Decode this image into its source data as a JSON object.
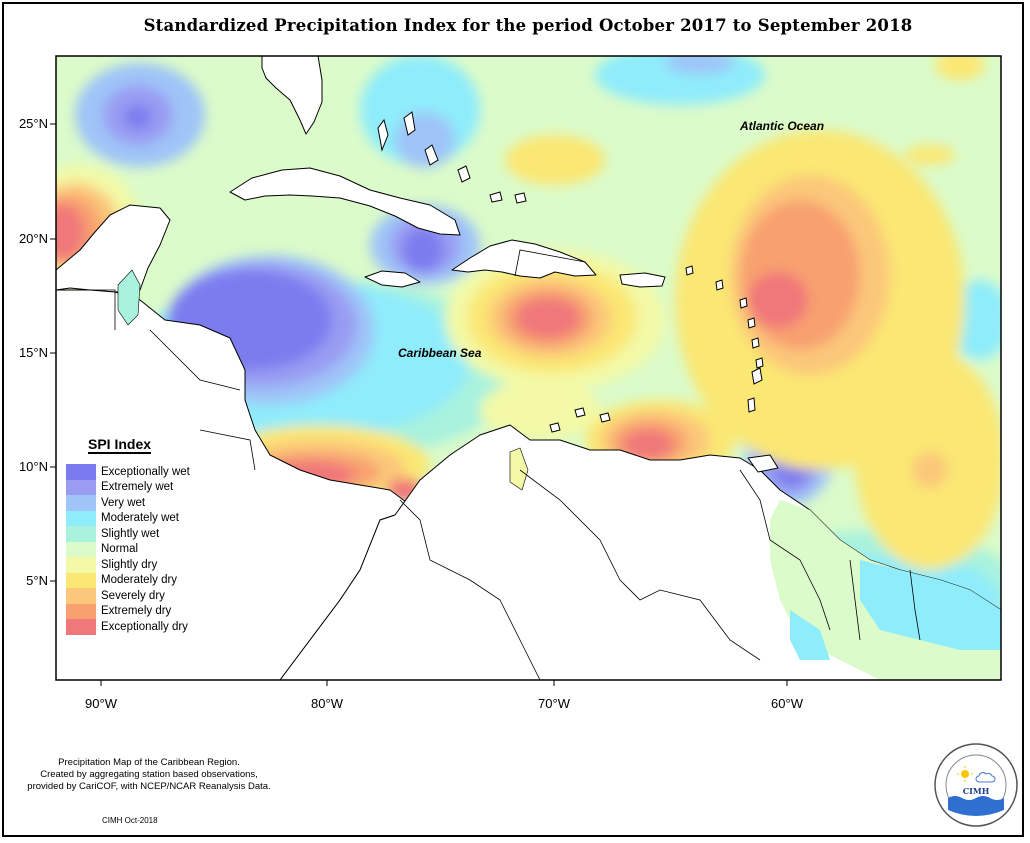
{
  "title": "Standardized Precipitation Index for the period October 2017 to September 2018",
  "axes": {
    "lat_labels": [
      "25°N",
      "20°N",
      "15°N",
      "10°N",
      "5°N"
    ],
    "lon_labels": [
      "90°W",
      "80°W",
      "70°W",
      "60°W"
    ]
  },
  "places": {
    "atlantic": "Atlantic Ocean",
    "caribbean": "Caribbean Sea"
  },
  "legend": {
    "title": "SPI Index",
    "items": [
      {
        "label": "Exceptionally wet",
        "color": "#7b7bef"
      },
      {
        "label": "Extremely wet",
        "color": "#9a9cf2"
      },
      {
        "label": "Very wet",
        "color": "#9fc4f8"
      },
      {
        "label": "Moderately wet",
        "color": "#8fecfb"
      },
      {
        "label": "Slightly wet",
        "color": "#a8f2de"
      },
      {
        "label": "Normal",
        "color": "#dbfbca"
      },
      {
        "label": "Slightly dry",
        "color": "#f3f9a6"
      },
      {
        "label": "Moderately dry",
        "color": "#fbe773"
      },
      {
        "label": "Severely dry",
        "color": "#fbc77a"
      },
      {
        "label": "Extremely dry",
        "color": "#f8a070"
      },
      {
        "label": "Exceptionally dry",
        "color": "#f0777a"
      }
    ]
  },
  "footer": {
    "line1": "Precipitation Map of the Caribbean Region.",
    "line2": "Created by aggregating station based observations,",
    "line3": "provided by CariCOF, with NCEP/NCAR Reanalysis Data.",
    "stamp": "CIMH Oct-2018"
  },
  "logo": {
    "name": "CIMH",
    "ring_text": "Caribbean Institute for Meteorology and Hydrology"
  }
}
